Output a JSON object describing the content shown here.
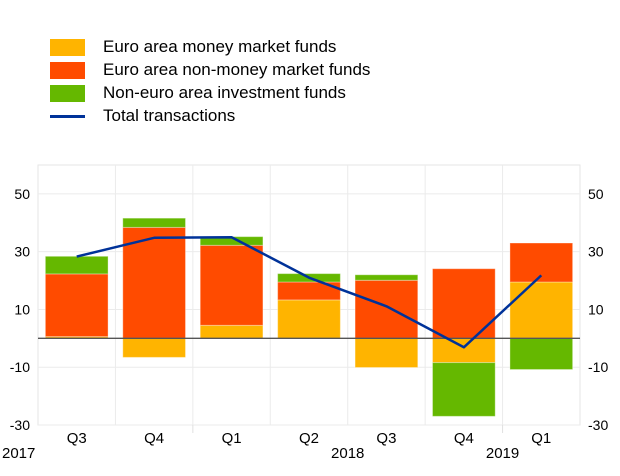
{
  "chart_data": {
    "type": "bar",
    "stacked": true,
    "categories": [
      "Q3",
      "Q4",
      "Q1",
      "Q2",
      "Q3",
      "Q4",
      "Q1"
    ],
    "years": [
      {
        "label": "2017",
        "position": "start"
      },
      {
        "label": "2018",
        "position": "between Q2 and Q3"
      },
      {
        "label": "2019",
        "position": "between Q4 and Q1"
      }
    ],
    "series": [
      {
        "name": "Euro area money market funds",
        "type": "bar",
        "color": "#FFB400",
        "values": [
          0.6,
          -6.6,
          4.5,
          13.3,
          -10.1,
          -8.4,
          19.5
        ]
      },
      {
        "name": "Euro area non-money market funds",
        "type": "bar",
        "color": "#FF4B00",
        "values": [
          21.7,
          38.4,
          27.7,
          6.2,
          20.1,
          24.1,
          13.5
        ]
      },
      {
        "name": "Non-euro area investment funds",
        "type": "bar",
        "color": "#65B800",
        "values": [
          6.1,
          3.2,
          3.0,
          2.9,
          1.9,
          -18.6,
          -10.8
        ]
      },
      {
        "name": "Total transactions",
        "type": "line",
        "color": "#003299",
        "values": [
          28.3,
          34.8,
          35.0,
          21.0,
          11.1,
          -3.1,
          21.8
        ]
      }
    ],
    "ylim": [
      -30,
      60
    ],
    "yticks": [
      50,
      30,
      10,
      -10,
      -30
    ],
    "ytick_labels": [
      "50",
      "30",
      "10",
      "-10",
      "-30"
    ],
    "right_axis": true,
    "grid": true,
    "legend_position": "top-left",
    "title": "",
    "xlabel": "",
    "ylabel": ""
  }
}
